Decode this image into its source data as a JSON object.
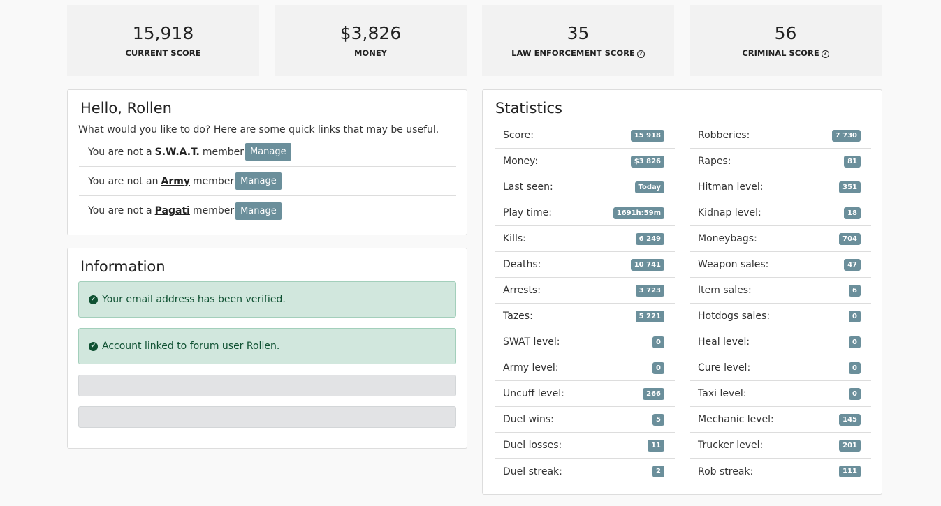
{
  "score_cards": [
    {
      "value": "15,918",
      "label": "CURRENT SCORE"
    },
    {
      "value": "$3,826",
      "label": "MONEY"
    },
    {
      "value": "35",
      "label": "LAW ENFORCEMENT SCORE"
    },
    {
      "value": "56",
      "label": "CRIMINAL SCORE"
    }
  ],
  "greeting": {
    "title": "Hello, Rollen",
    "intro": "What would you like to do? Here are some quick links that may be useful.",
    "links": [
      {
        "prefix": "You are not a",
        "group": "S.W.A.T.",
        "suffix": "member",
        "button": "Manage"
      },
      {
        "prefix": "You are not an",
        "group": "Army",
        "suffix": "member",
        "button": "Manage"
      },
      {
        "prefix": "You are not a",
        "group": "Pagati",
        "suffix": "member",
        "button": "Manage"
      }
    ]
  },
  "information": {
    "title": "Information",
    "alerts": [
      "Your email address has been verified.",
      "Account linked to forum user Rollen."
    ]
  },
  "statistics": {
    "title": "Statistics",
    "left": [
      {
        "label": "Score:",
        "value": "15 918"
      },
      {
        "label": "Money:",
        "value": "$3 826"
      },
      {
        "label": "Last seen:",
        "value": "Today"
      },
      {
        "label": "Play time:",
        "value": "1691h:59m"
      },
      {
        "label": "Kills:",
        "value": "6 249"
      },
      {
        "label": "Deaths:",
        "value": "10 741"
      },
      {
        "label": "Arrests:",
        "value": "3 723"
      },
      {
        "label": "Tazes:",
        "value": "5 221"
      },
      {
        "label": "SWAT level:",
        "value": "0"
      },
      {
        "label": "Army level:",
        "value": "0"
      },
      {
        "label": "Uncuff level:",
        "value": "266"
      },
      {
        "label": "Duel wins:",
        "value": "5"
      },
      {
        "label": "Duel losses:",
        "value": "11"
      },
      {
        "label": "Duel streak:",
        "value": "2"
      }
    ],
    "right": [
      {
        "label": "Robberies:",
        "value": "7 730"
      },
      {
        "label": "Rapes:",
        "value": "81"
      },
      {
        "label": "Hitman level:",
        "value": "351"
      },
      {
        "label": "Kidnap level:",
        "value": "18"
      },
      {
        "label": "Moneybags:",
        "value": "704"
      },
      {
        "label": "Weapon sales:",
        "value": "47"
      },
      {
        "label": "Item sales:",
        "value": "6"
      },
      {
        "label": "Hotdogs sales:",
        "value": "0"
      },
      {
        "label": "Heal level:",
        "value": "0"
      },
      {
        "label": "Cure level:",
        "value": "0"
      },
      {
        "label": "Taxi level:",
        "value": "0"
      },
      {
        "label": "Mechanic level:",
        "value": "145"
      },
      {
        "label": "Trucker level:",
        "value": "201"
      },
      {
        "label": "Rob streak:",
        "value": "111"
      }
    ]
  }
}
